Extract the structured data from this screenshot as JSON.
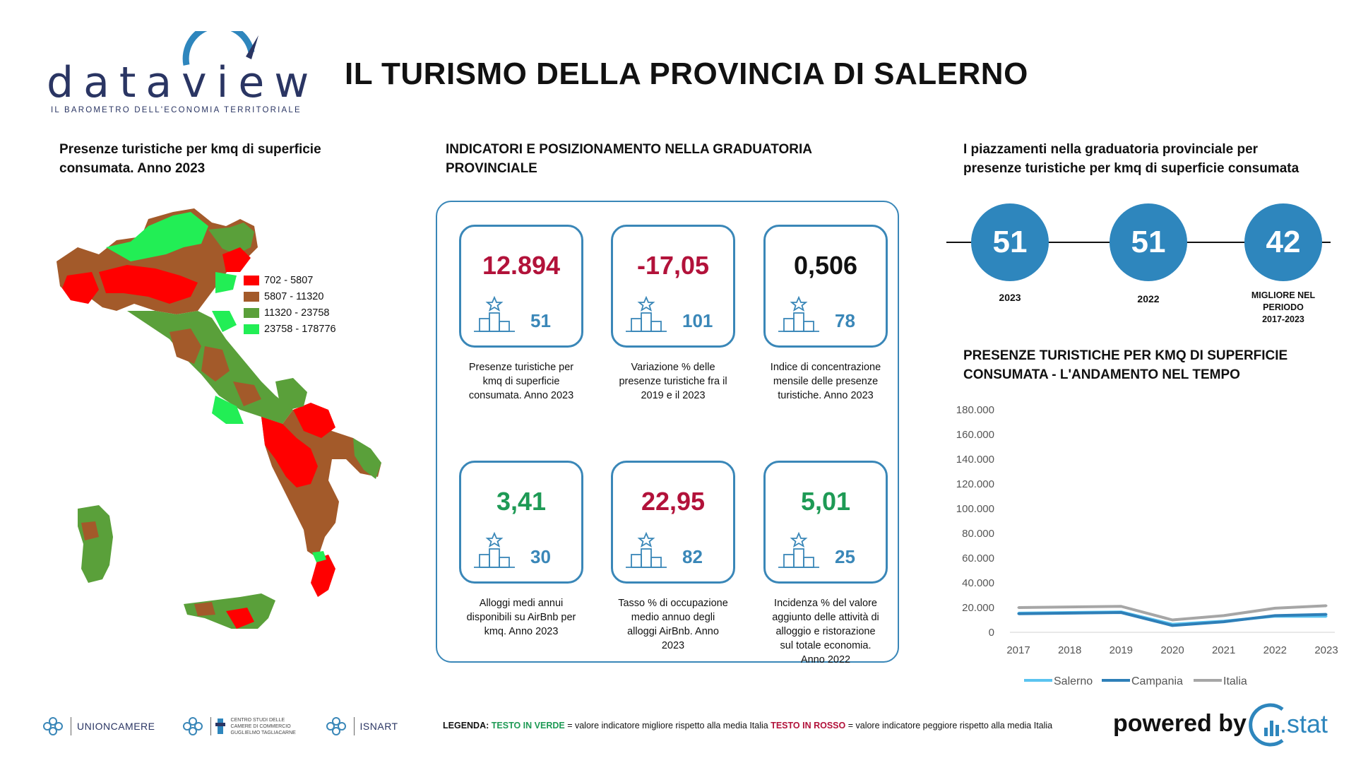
{
  "header": {
    "logo_text": "dataview",
    "logo_tagline": "IL BAROMETRO DELL'ECONOMIA TERRITORIALE",
    "title": "IL TURISMO DELLA PROVINCIA DI SALERNO"
  },
  "map_section": {
    "title_line1": "Presenze turistiche per kmq di superficie",
    "title_line2": "consumata. Anno 2023",
    "legend": [
      {
        "label": "702 - 5807",
        "color": "#ff0000"
      },
      {
        "label": "5807 - 11320",
        "color": "#a35a2a"
      },
      {
        "label": "11320 - 23758",
        "color": "#5aa03a"
      },
      {
        "label": "23758 - 178776",
        "color": "#22ee55"
      }
    ]
  },
  "indicators_section": {
    "title_line1": "INDICATORI E POSIZIONAMENTO NELLA GRADUATORIA",
    "title_line2": "PROVINCIALE",
    "cards": [
      {
        "value": "12.894",
        "rank": "51",
        "status": "bad",
        "desc": [
          "Presenze turistiche per",
          "kmq di superficie",
          "consumata. Anno 2023"
        ]
      },
      {
        "value": "-17,05",
        "rank": "101",
        "status": "bad",
        "desc": [
          "Variazione % delle",
          "presenze turistiche fra il",
          "2019 e il 2023"
        ]
      },
      {
        "value": "0,506",
        "rank": "78",
        "status": "neutral",
        "desc": [
          "Indice di concentrazione",
          "mensile delle presenze",
          "turistiche. Anno 2023"
        ]
      },
      {
        "value": "3,41",
        "rank": "30",
        "status": "good",
        "desc": [
          "Alloggi medi annui",
          "disponibili su AirBnb per",
          "kmq. Anno 2023"
        ]
      },
      {
        "value": "22,95",
        "rank": "82",
        "status": "bad",
        "desc": [
          "Tasso % di occupazione",
          "medio annuo degli",
          "alloggi AirBnb. Anno",
          "2023"
        ]
      },
      {
        "value": "5,01",
        "rank": "25",
        "status": "good",
        "desc": [
          "Incidenza % del valore",
          "aggiunto delle attività di",
          "alloggio e ristorazione",
          "sul totale economia.",
          "Anno 2022"
        ]
      }
    ],
    "colors": {
      "good": "#1e9a55",
      "bad": "#b2123a",
      "neutral": "#111111",
      "accent": "#3a87b8"
    }
  },
  "ranking_section": {
    "title_line1": "I piazzamenti nella graduatoria provinciale per",
    "title_line2": "presenze turistiche per kmq di superficie consumata",
    "items": [
      {
        "value": "51",
        "caption": [
          "2023"
        ]
      },
      {
        "value": "51",
        "caption": [
          "2022"
        ]
      },
      {
        "value": "42",
        "caption": [
          "MIGLIORE NEL",
          "PERIODO",
          "2017-2023"
        ]
      }
    ]
  },
  "trend_section": {
    "title_line1": "PRESENZE TURISTICHE PER KMQ DI SUPERFICIE",
    "title_line2": "CONSUMATA - L'ANDAMENTO NEL TEMPO"
  },
  "chart_data": {
    "type": "line",
    "title": "PRESENZE TURISTICHE PER KMQ DI SUPERFICIE CONSUMATA - L'ANDAMENTO NEL TEMPO",
    "x": [
      "2017",
      "2018",
      "2019",
      "2020",
      "2021",
      "2022",
      "2023"
    ],
    "ylim": [
      0,
      180000
    ],
    "yticks": [
      0,
      20000,
      40000,
      60000,
      80000,
      100000,
      120000,
      140000,
      160000,
      180000
    ],
    "ytick_labels": [
      "0",
      "20.000",
      "40.000",
      "60.000",
      "80.000",
      "100.000",
      "120.000",
      "140.000",
      "160.000",
      "180.000"
    ],
    "grid": false,
    "legend_position": "bottom",
    "series": [
      {
        "name": "Salerno",
        "color": "#5bc4f0",
        "values": [
          15500,
          16000,
          16500,
          6500,
          9000,
          13000,
          12894
        ]
      },
      {
        "name": "Campania",
        "color": "#2e7fb8",
        "values": [
          15000,
          15500,
          16000,
          5500,
          8500,
          13500,
          14500
        ]
      },
      {
        "name": "Italia",
        "color": "#a6a6a6",
        "values": [
          20000,
          20500,
          21000,
          10000,
          13500,
          19500,
          21500
        ]
      }
    ]
  },
  "footer": {
    "logo1": "UNIONCAMERE",
    "logo2_lines": [
      "CENTRO STUDI DELLE",
      "CAMERE DI COMMERCIO",
      "GUGLIELMO TAGLIACARNE"
    ],
    "logo3": "ISNART",
    "legend_prefix": "LEGENDA:",
    "legend_green": "TESTO IN VERDE",
    "legend_green_desc": " = valore indicatore migliore rispetto alla media Italia ",
    "legend_red": "TESTO IN ROSSO",
    "legend_red_desc": " = valore indicatore peggiore rispetto alla media Italia",
    "powered_by": "powered by",
    "stat_brand": ".stat"
  }
}
